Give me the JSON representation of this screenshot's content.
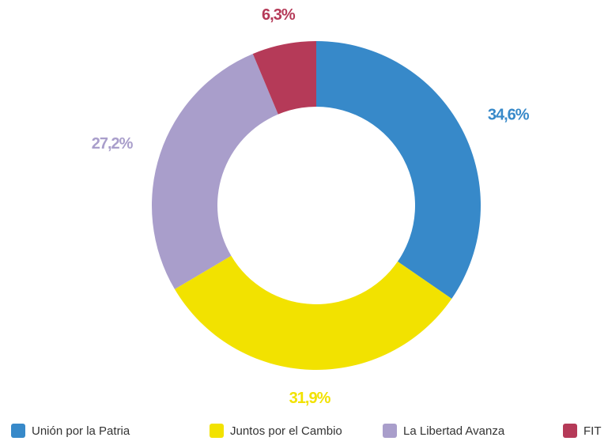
{
  "chart_data": {
    "type": "donut",
    "categories": [
      "Unión por la Patria",
      "Juntos por el Cambio",
      "La Libertad Avanza",
      "FIT"
    ],
    "values": [
      34.6,
      31.9,
      27.2,
      6.3
    ],
    "value_labels": [
      "34,6%",
      "31,9%",
      "27,2%",
      "6,3%"
    ],
    "colors": [
      "#3789c9",
      "#f2e200",
      "#a99ecb",
      "#b53a58"
    ],
    "legend": "bottom"
  }
}
